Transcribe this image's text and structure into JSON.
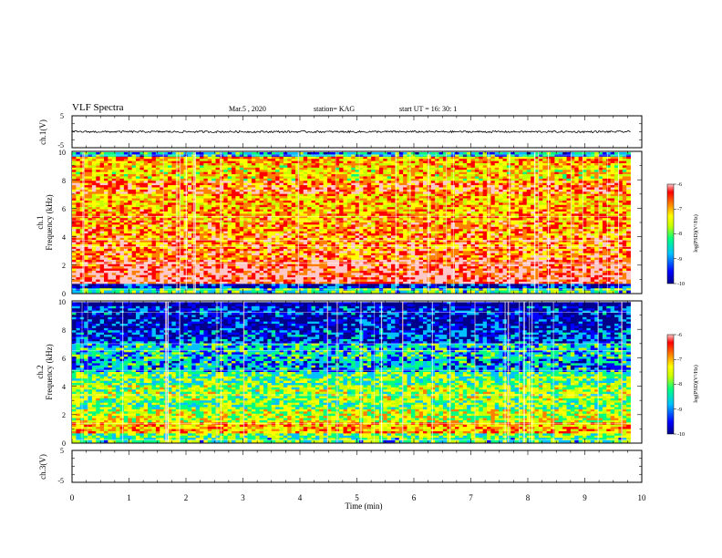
{
  "header": {
    "title": "VLF Spectra",
    "date": "Mar.5  , 2020",
    "station": "station= KAG",
    "start_ut": "start  UT  =    16: 30: 1"
  },
  "chart_data": [
    {
      "type": "line",
      "name": "ch1-waveform",
      "ylabel": "ch.1(V)",
      "ylim": [
        -5,
        5
      ],
      "yticks": [
        "5",
        "-5"
      ],
      "xlim": [
        0,
        10
      ],
      "baseline_value": 0,
      "data_end_min": 9.8
    },
    {
      "type": "heatmap",
      "name": "ch1-spectrogram",
      "ylabel": "Frequency (kHz)",
      "ylabel2": "ch.1",
      "ylim": [
        0,
        10
      ],
      "yticks": [
        "0",
        "2",
        "4",
        "6",
        "8",
        "10"
      ],
      "xlim": [
        0,
        10
      ],
      "data_end_min": 9.8,
      "colorbar": {
        "label": "log(PSD)(V²/Hz)",
        "range": [
          -10,
          -6
        ],
        "ticks": [
          "-6",
          "-7",
          "-8",
          "-9",
          "-10"
        ]
      },
      "band_levels": [
        {
          "from": 0,
          "to": 0.3,
          "level": -8.4
        },
        {
          "from": 0.3,
          "to": 0.7,
          "level": -9.5
        },
        {
          "from": 0.7,
          "to": 1.4,
          "level": -6.5
        },
        {
          "from": 1.4,
          "to": 2.3,
          "level": -6.6
        },
        {
          "from": 2.3,
          "to": 3.0,
          "level": -6.9
        },
        {
          "from": 3.0,
          "to": 4.0,
          "level": -7.0
        },
        {
          "from": 4.0,
          "to": 5.0,
          "level": -7.1
        },
        {
          "from": 5.0,
          "to": 6.0,
          "level": -7.2
        },
        {
          "from": 6.0,
          "to": 7.0,
          "level": -7.4
        },
        {
          "from": 7.0,
          "to": 8.0,
          "level": -6.9
        },
        {
          "from": 8.0,
          "to": 9.0,
          "level": -7.5
        },
        {
          "from": 9.0,
          "to": 9.7,
          "level": -7.3
        },
        {
          "from": 9.7,
          "to": 10.0,
          "level": -8.8
        }
      ]
    },
    {
      "type": "heatmap",
      "name": "ch2-spectrogram",
      "ylabel": "Frequency (kHz)",
      "ylabel2": "ch.2",
      "ylim": [
        0,
        10
      ],
      "yticks": [
        "0",
        "2",
        "4",
        "6",
        "8",
        "10"
      ],
      "xlim": [
        0,
        10
      ],
      "data_end_min": 9.8,
      "colorbar": {
        "label": "log(PSD)(V²/Hz)",
        "range": [
          -10,
          -6
        ],
        "ticks": [
          "-6",
          "-7",
          "-8",
          "-9",
          "-10"
        ]
      },
      "band_levels": [
        {
          "from": 0,
          "to": 0.3,
          "level": -8.4
        },
        {
          "from": 0.3,
          "to": 0.7,
          "level": -8.2
        },
        {
          "from": 0.7,
          "to": 1.4,
          "level": -7.3
        },
        {
          "from": 1.4,
          "to": 2.3,
          "level": -7.8
        },
        {
          "from": 2.3,
          "to": 3.0,
          "level": -8.2
        },
        {
          "from": 3.0,
          "to": 4.0,
          "level": -8.0
        },
        {
          "from": 4.0,
          "to": 5.0,
          "level": -8.3
        },
        {
          "from": 5.0,
          "to": 6.0,
          "level": -8.9
        },
        {
          "from": 6.0,
          "to": 7.0,
          "level": -8.7
        },
        {
          "from": 7.0,
          "to": 8.0,
          "level": -9.3
        },
        {
          "from": 8.0,
          "to": 9.0,
          "level": -9.6
        },
        {
          "from": 9.0,
          "to": 9.7,
          "level": -9.4
        },
        {
          "from": 9.7,
          "to": 10.0,
          "level": -9.9
        }
      ]
    },
    {
      "type": "line",
      "name": "ch3-waveform",
      "ylabel": "ch.3(V)",
      "ylim": [
        -5,
        5
      ],
      "yticks": [
        "5",
        "-5"
      ],
      "xlim": [
        0,
        10
      ],
      "has_data": false
    }
  ],
  "xaxis": {
    "label": "Time  (min)",
    "range": [
      0,
      10
    ],
    "ticks": [
      "0",
      "1",
      "2",
      "3",
      "4",
      "5",
      "6",
      "7",
      "8",
      "9",
      "10"
    ]
  },
  "colors": {
    "scale": [
      "#00008b",
      "#0000ff",
      "#00c0ff",
      "#00ff80",
      "#c8ff00",
      "#ffff00",
      "#ff8000",
      "#ff0000",
      "#ffc8c8"
    ]
  }
}
